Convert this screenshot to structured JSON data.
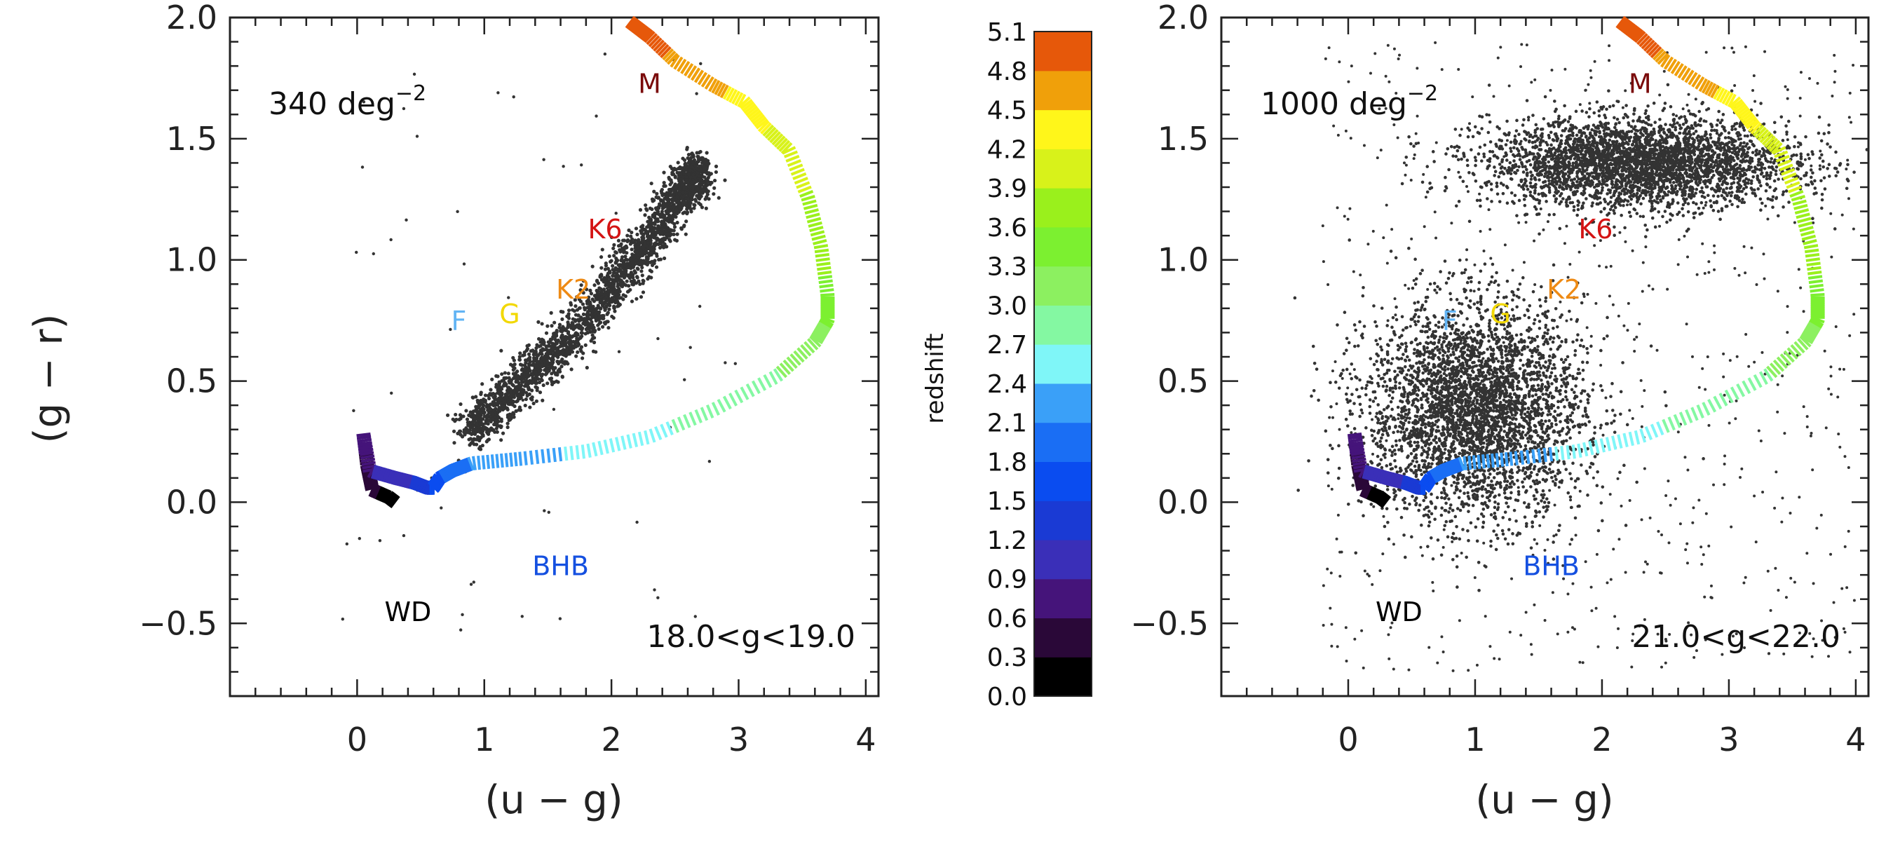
{
  "figure": {
    "y_axis_title": "(g − r)",
    "colorbar_title": "redshift"
  },
  "panels": [
    {
      "x_axis_title": "(u − g)",
      "density_label": "340 deg",
      "density_exponent": "−2",
      "magnitude_label": "18.0<g<19.0"
    },
    {
      "x_axis_title": "(u − g)",
      "density_label": "1000 deg",
      "density_exponent": "−2",
      "magnitude_label": "21.0<g<22.0"
    }
  ],
  "star_labels": [
    {
      "text": "WD",
      "u_g": 0.4,
      "g_r": -0.45,
      "color": "#000000"
    },
    {
      "text": "BHB",
      "u_g": 1.6,
      "g_r": -0.26,
      "color": "#1550e0"
    },
    {
      "text": "F",
      "u_g": 0.8,
      "g_r": 0.75,
      "color": "#62b4f4"
    },
    {
      "text": "G",
      "u_g": 1.2,
      "g_r": 0.78,
      "color": "#f2d800"
    },
    {
      "text": "K2",
      "u_g": 1.7,
      "g_r": 0.88,
      "color": "#ee8a14"
    },
    {
      "text": "K6",
      "u_g": 1.95,
      "g_r": 1.13,
      "color": "#d41414"
    },
    {
      "text": "M",
      "u_g": 2.3,
      "g_r": 1.73,
      "color": "#7a0a0a"
    }
  ],
  "colorbar": {
    "ticks": [
      "0.0",
      "0.3",
      "0.6",
      "0.9",
      "1.2",
      "1.5",
      "1.8",
      "2.1",
      "2.4",
      "2.7",
      "3.0",
      "3.3",
      "3.6",
      "3.9",
      "4.2",
      "4.5",
      "4.8",
      "5.1"
    ],
    "colors": [
      "#000000",
      "#2a0838",
      "#45147a",
      "#3a2fb8",
      "#1a3ad4",
      "#0a4cf0",
      "#1a6ef4",
      "#3aa0f8",
      "#7ff6f8",
      "#84f8a2",
      "#8cf060",
      "#7cf030",
      "#9af01c",
      "#d8f21a",
      "#fff61a",
      "#f0a00a",
      "#e6580a"
    ]
  },
  "chart_data": [
    {
      "type": "scatter",
      "title": "",
      "xlabel": "(u − g)",
      "ylabel": "(g − r)",
      "xlim": [
        -1.0,
        4.1
      ],
      "ylim": [
        -0.8,
        2.0
      ],
      "x_ticks": [
        0,
        1,
        2,
        3,
        4
      ],
      "y_ticks": [
        -0.5,
        0.0,
        0.5,
        1.0,
        1.5,
        2.0
      ],
      "annotation": "18.0<g<19.0",
      "density": "340 deg^-2",
      "series": [
        {
          "description": "stellar locus (g = 18-19 stars), black points",
          "locus": [
            [
              0.88,
              0.28
            ],
            [
              1.2,
              0.45
            ],
            [
              1.6,
              0.64
            ],
            [
              2.0,
              0.88
            ],
            [
              2.3,
              1.08
            ],
            [
              2.55,
              1.28
            ],
            [
              2.7,
              1.38
            ]
          ]
        },
        {
          "description": "quasar color track vs redshift (z 0.0–5.1)",
          "x": [
            0.3,
            0.25,
            0.12,
            0.08,
            0.05,
            0.1,
            0.3,
            0.45,
            0.55,
            0.6,
            0.65,
            0.75,
            0.9,
            1.3,
            1.8,
            2.3,
            2.8,
            3.3,
            3.6,
            3.7,
            3.7,
            3.65,
            3.55,
            3.4,
            3.2,
            3.05,
            2.8,
            2.5,
            2.3,
            2.15
          ],
          "y": [
            0.0,
            0.02,
            0.05,
            0.15,
            0.28,
            0.13,
            0.1,
            0.08,
            0.06,
            0.06,
            0.1,
            0.13,
            0.16,
            0.18,
            0.21,
            0.27,
            0.38,
            0.52,
            0.66,
            0.75,
            0.85,
            1.05,
            1.25,
            1.45,
            1.55,
            1.65,
            1.72,
            1.82,
            1.92,
            1.98
          ]
        }
      ]
    },
    {
      "type": "scatter",
      "title": "",
      "xlabel": "(u − g)",
      "ylabel": "",
      "xlim": [
        -1.0,
        4.1
      ],
      "ylim": [
        -0.8,
        2.0
      ],
      "x_ticks": [
        0,
        1,
        2,
        3,
        4
      ],
      "y_ticks": [
        -0.5,
        0.0,
        0.5,
        1.0,
        1.5,
        2.0
      ],
      "annotation": "21.0<g<22.0",
      "density": "1000 deg^-2",
      "series": [
        {
          "description": "stars g = 21-22: blue clump and red M-dwarf clump, black points",
          "clumps": [
            {
              "center": [
                1.0,
                0.38
              ],
              "spread": [
                0.42,
                0.22
              ]
            },
            {
              "center": [
                2.3,
                1.4
              ],
              "spread": [
                0.6,
                0.09
              ]
            }
          ]
        },
        {
          "description": "quasar color track vs redshift (z 0.0–5.1)",
          "x": [
            0.3,
            0.25,
            0.12,
            0.08,
            0.05,
            0.1,
            0.3,
            0.45,
            0.55,
            0.6,
            0.65,
            0.75,
            0.9,
            1.3,
            1.8,
            2.3,
            2.8,
            3.3,
            3.6,
            3.7,
            3.7,
            3.65,
            3.55,
            3.4,
            3.2,
            3.05,
            2.8,
            2.5,
            2.3,
            2.15
          ],
          "y": [
            0.0,
            0.02,
            0.05,
            0.15,
            0.28,
            0.13,
            0.1,
            0.08,
            0.06,
            0.06,
            0.1,
            0.13,
            0.16,
            0.18,
            0.21,
            0.27,
            0.38,
            0.52,
            0.66,
            0.75,
            0.85,
            1.05,
            1.25,
            1.45,
            1.55,
            1.65,
            1.72,
            1.82,
            1.92,
            1.98
          ]
        }
      ]
    }
  ]
}
